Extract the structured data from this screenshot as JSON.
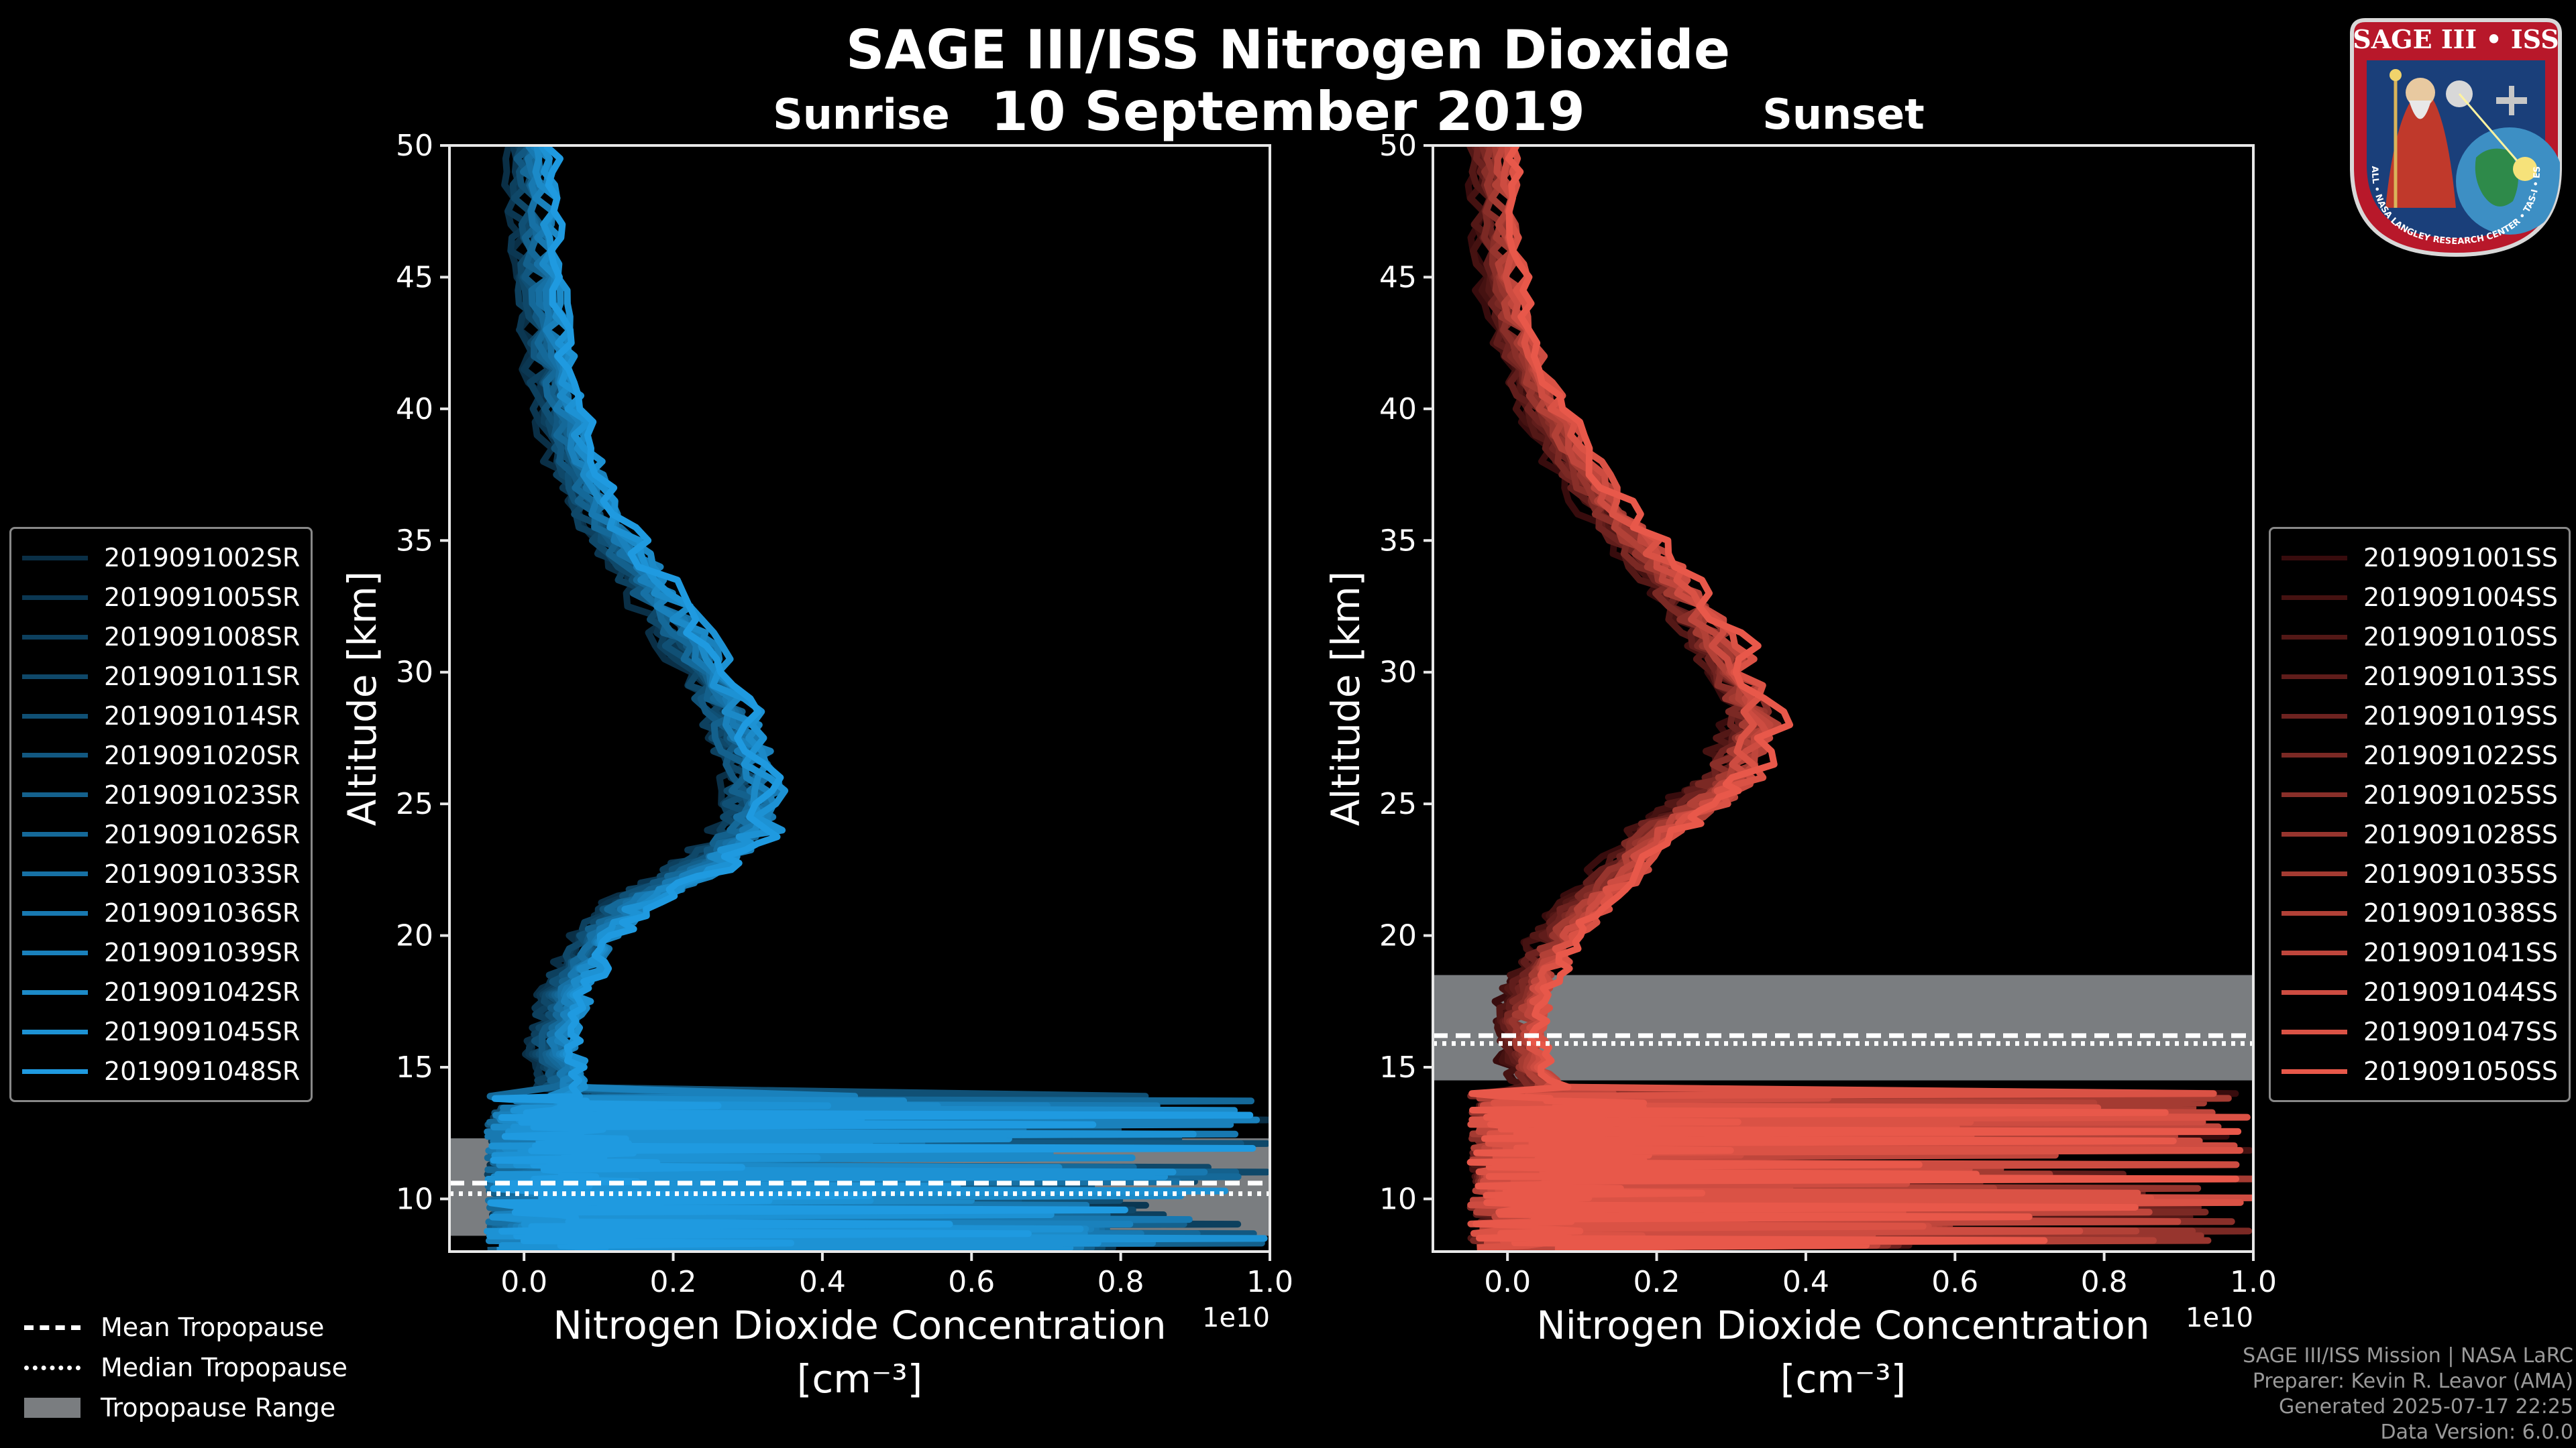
{
  "header": {
    "title": "SAGE III/ISS Nitrogen Dioxide",
    "date": "10 September 2019",
    "left_panel_title": "Sunrise",
    "right_panel_title": "Sunset"
  },
  "logo": {
    "text": "SAGE III • ISS",
    "ring_text": "BALL • NASA LANGLEY RESEARCH CENTER • TAS-I • ESA"
  },
  "bottom_legend": {
    "mean": "Mean Tropopause",
    "median": "Median Tropopause",
    "range": "Tropopause Range"
  },
  "credits": {
    "line1": "SAGE III/ISS Mission | NASA LaRC",
    "line2": "Preparer: Kevin R. Leavor (AMA)",
    "line3": "Generated 2025-07-17 22:25",
    "line4": "Data Version: 6.0.0"
  },
  "colors": {
    "sunrise": "#1f9ae0",
    "sunset": "#e8584a",
    "tropopause_range": "#7a7d80",
    "background": "#000000"
  },
  "chart_data": [
    {
      "type": "line",
      "panel": "Sunrise",
      "xlabel": "Nitrogen Dioxide Concentration",
      "xunit": "[cm⁻³]",
      "ylabel": "Altitude [km]",
      "x_scale_label": "1e10",
      "xlim": [
        -0.1,
        1.0
      ],
      "ylim": [
        8,
        50
      ],
      "xticks": [
        "0.0",
        "0.2",
        "0.4",
        "0.6",
        "0.8",
        "1.0"
      ],
      "yticks": [
        "10",
        "15",
        "20",
        "25",
        "30",
        "35",
        "40",
        "45",
        "50"
      ],
      "legend_position": "left",
      "tropopause": {
        "mean_km": 10.6,
        "median_km": 10.2,
        "range_km": [
          8.6,
          12.3
        ]
      },
      "profile_template": {
        "altitude_km": [
          50,
          48,
          46,
          44,
          42,
          40,
          38,
          36,
          34,
          32,
          30,
          28,
          26,
          24,
          23,
          22,
          21,
          20,
          19,
          18,
          17,
          16,
          15,
          14
        ],
        "no2_1e10": [
          0.01,
          0.015,
          0.02,
          0.025,
          0.035,
          0.05,
          0.07,
          0.1,
          0.15,
          0.2,
          0.25,
          0.28,
          0.31,
          0.3,
          0.26,
          0.2,
          0.13,
          0.1,
          0.08,
          0.06,
          0.05,
          0.04,
          0.05,
          0.05
        ]
      },
      "series": [
        {
          "name": "2019091002SR"
        },
        {
          "name": "2019091005SR"
        },
        {
          "name": "2019091008SR"
        },
        {
          "name": "2019091011SR"
        },
        {
          "name": "2019091014SR"
        },
        {
          "name": "2019091020SR"
        },
        {
          "name": "2019091023SR"
        },
        {
          "name": "2019091026SR"
        },
        {
          "name": "2019091033SR"
        },
        {
          "name": "2019091036SR"
        },
        {
          "name": "2019091039SR"
        },
        {
          "name": "2019091042SR"
        },
        {
          "name": "2019091045SR"
        },
        {
          "name": "2019091048SR"
        }
      ]
    },
    {
      "type": "line",
      "panel": "Sunset",
      "xlabel": "Nitrogen Dioxide Concentration",
      "xunit": "[cm⁻³]",
      "ylabel": "Altitude [km]",
      "x_scale_label": "1e10",
      "xlim": [
        -0.1,
        1.0
      ],
      "ylim": [
        8,
        50
      ],
      "xticks": [
        "0.0",
        "0.2",
        "0.4",
        "0.6",
        "0.8",
        "1.0"
      ],
      "yticks": [
        "10",
        "15",
        "20",
        "25",
        "30",
        "35",
        "40",
        "45",
        "50"
      ],
      "legend_position": "right",
      "tropopause": {
        "mean_km": 16.2,
        "median_km": 15.9,
        "range_km": [
          14.5,
          18.5
        ]
      },
      "profile_template": {
        "altitude_km": [
          50,
          48,
          46,
          44,
          42,
          40,
          38,
          36,
          34,
          32,
          30,
          28,
          26,
          25,
          24,
          22,
          21,
          20,
          19,
          18,
          17,
          16,
          15,
          14
        ],
        "no2_1e10": [
          -0.02,
          -0.015,
          -0.01,
          0.0,
          0.02,
          0.05,
          0.09,
          0.14,
          0.2,
          0.26,
          0.31,
          0.33,
          0.3,
          0.26,
          0.2,
          0.14,
          0.1,
          0.07,
          0.05,
          0.03,
          0.02,
          0.02,
          0.03,
          0.05
        ]
      },
      "series": [
        {
          "name": "2019091001SS"
        },
        {
          "name": "2019091004SS"
        },
        {
          "name": "2019091010SS"
        },
        {
          "name": "2019091013SS"
        },
        {
          "name": "2019091019SS"
        },
        {
          "name": "2019091022SS"
        },
        {
          "name": "2019091025SS"
        },
        {
          "name": "2019091028SS"
        },
        {
          "name": "2019091035SS"
        },
        {
          "name": "2019091038SS"
        },
        {
          "name": "2019091041SS"
        },
        {
          "name": "2019091044SS"
        },
        {
          "name": "2019091047SS"
        },
        {
          "name": "2019091050SS"
        }
      ]
    }
  ]
}
